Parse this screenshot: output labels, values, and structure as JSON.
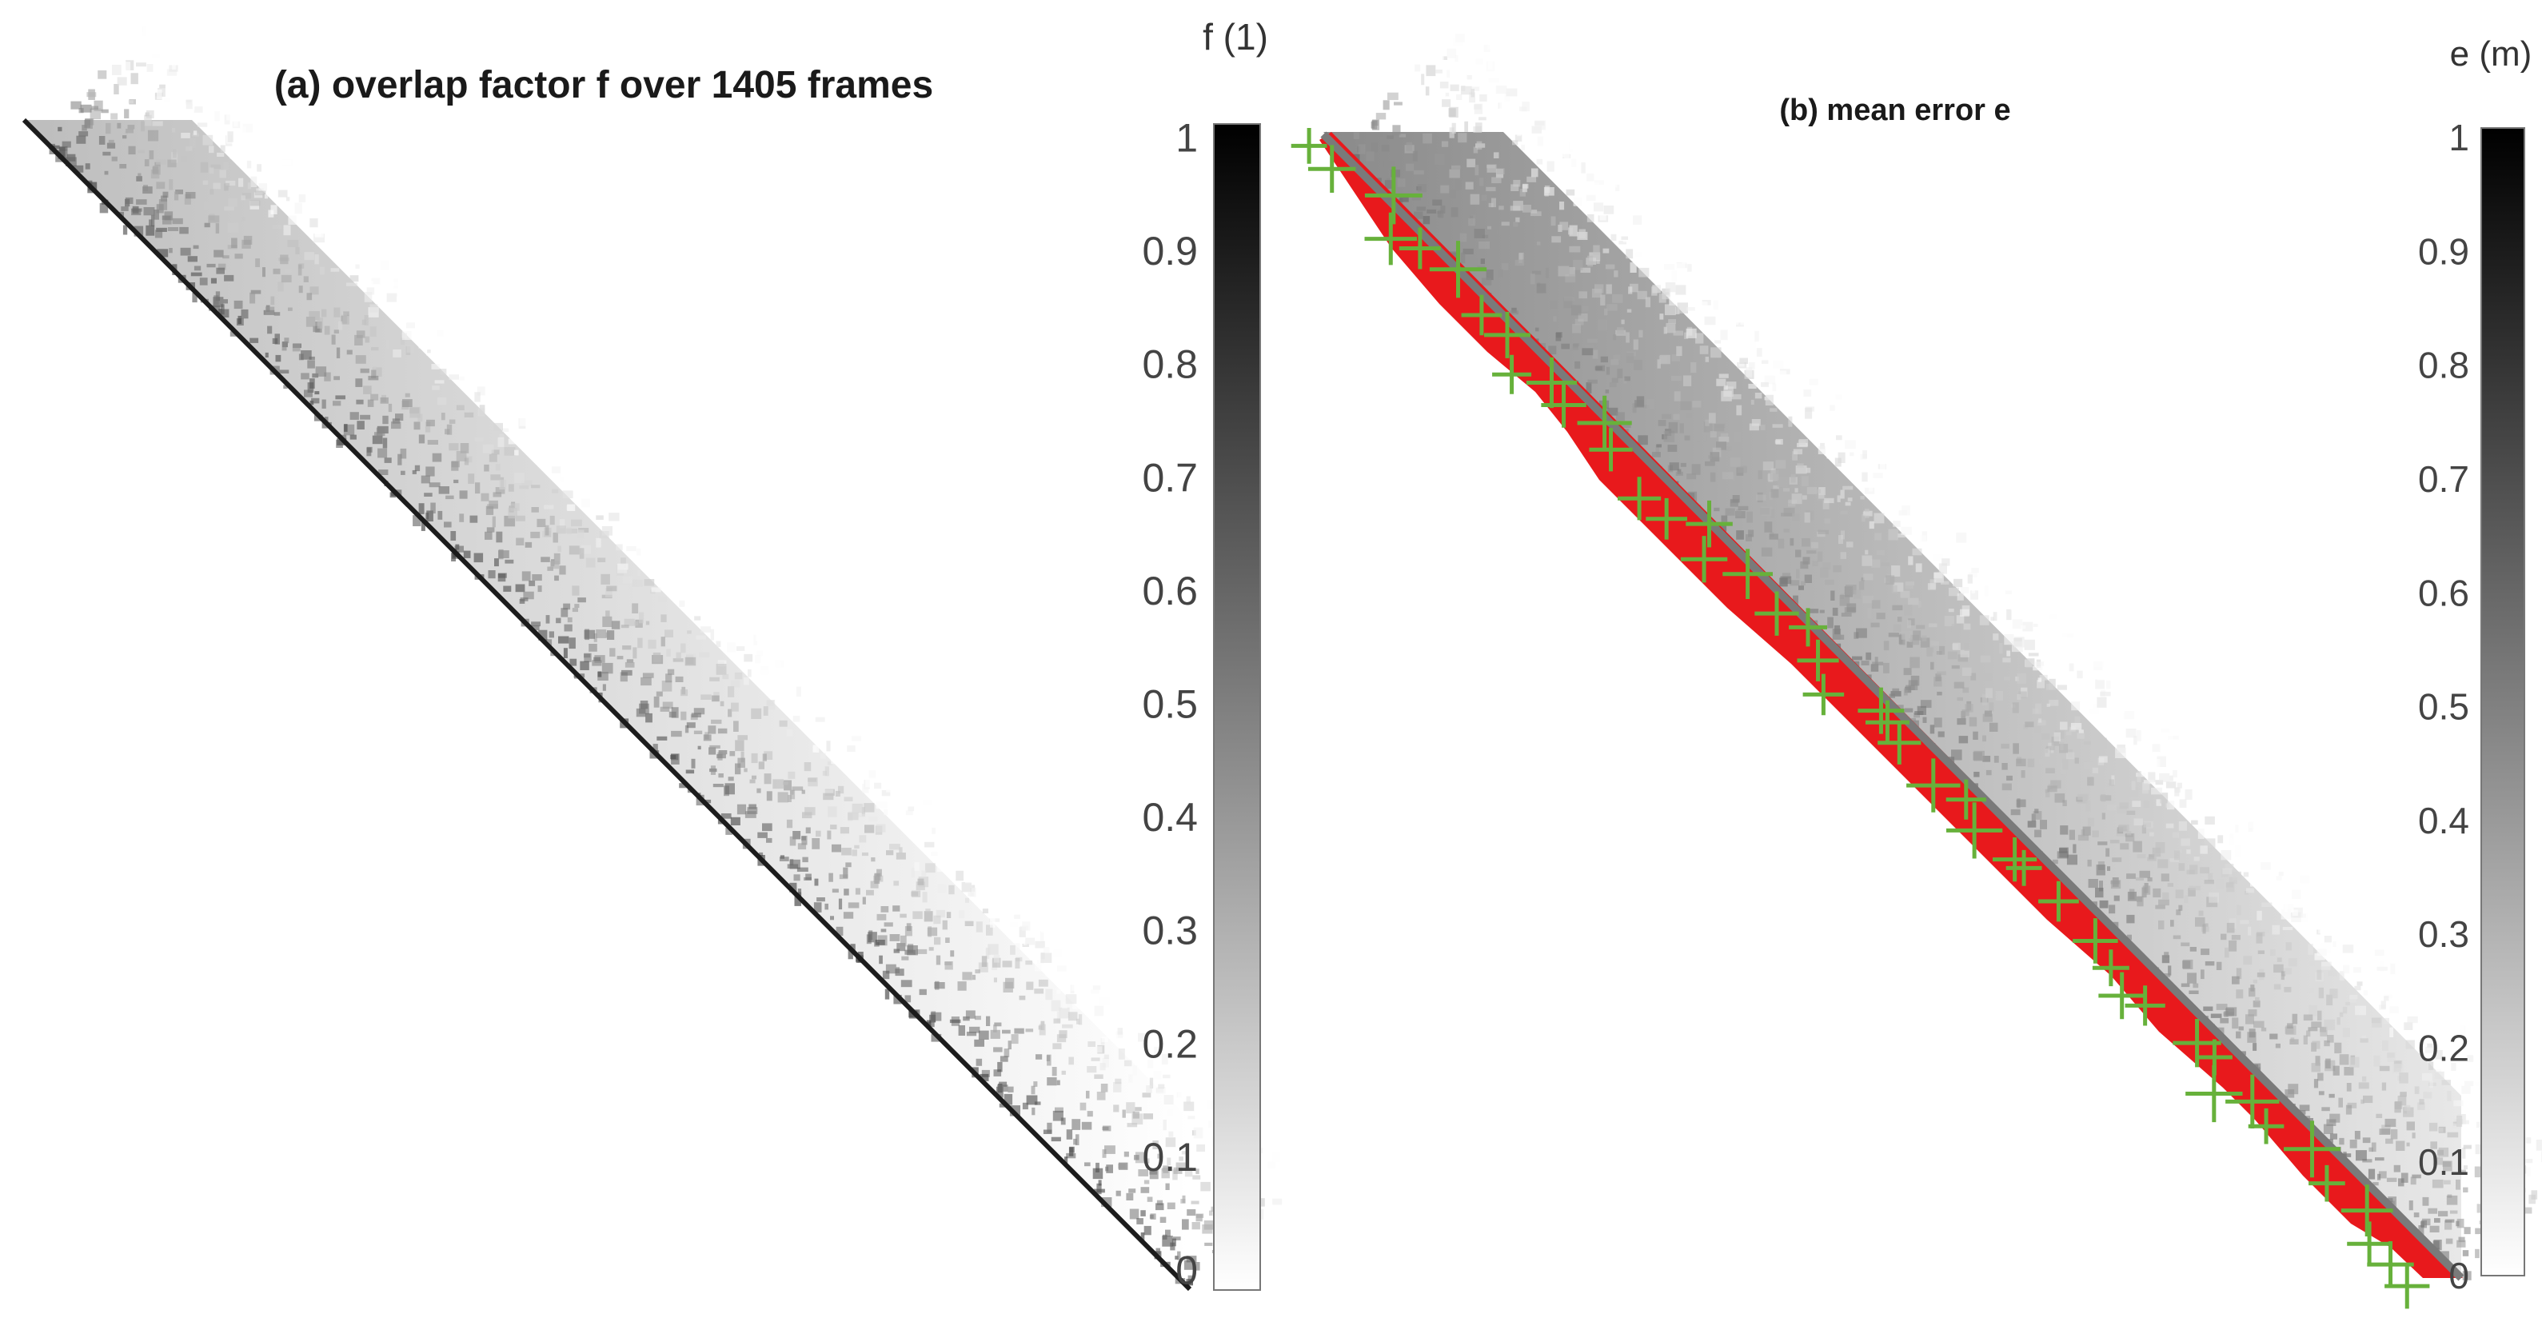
{
  "chart_data": [
    {
      "type": "heatmap",
      "title": "(a) overlap factor f over 1405 frames",
      "colorbar": {
        "label": "f (1)",
        "range": [
          0,
          1
        ],
        "ticks": [
          "0",
          "0.1",
          "0.2",
          "0.3",
          "0.4",
          "0.5",
          "0.6",
          "0.7",
          "0.8",
          "0.9",
          "1"
        ],
        "colormap": "gray-reversed",
        "color_low": "#ffffff",
        "color_high": "#000000"
      },
      "matrix": {
        "frames": 1405,
        "shape": "upper-triangular band",
        "values_on_diagonal": "high",
        "values_far_from_diagonal": "low"
      }
    },
    {
      "type": "heatmap",
      "title": "(b) mean error e",
      "colorbar": {
        "label": "e (m)",
        "range": [
          0,
          1
        ],
        "ticks": [
          "0",
          "0.1",
          "0.2",
          "0.3",
          "0.4",
          "0.5",
          "0.6",
          "0.7",
          "0.8",
          "0.9",
          "1"
        ],
        "colormap": "gray-reversed",
        "color_low": "#ffffff",
        "color_high": "#000000"
      },
      "matrix": {
        "frames": 1405,
        "shape": "upper-triangular band"
      },
      "overlays": [
        {
          "kind": "region",
          "color": "#e8191c",
          "marker": "fill"
        },
        {
          "kind": "points",
          "color": "#67b13b",
          "marker": "+"
        }
      ]
    }
  ]
}
